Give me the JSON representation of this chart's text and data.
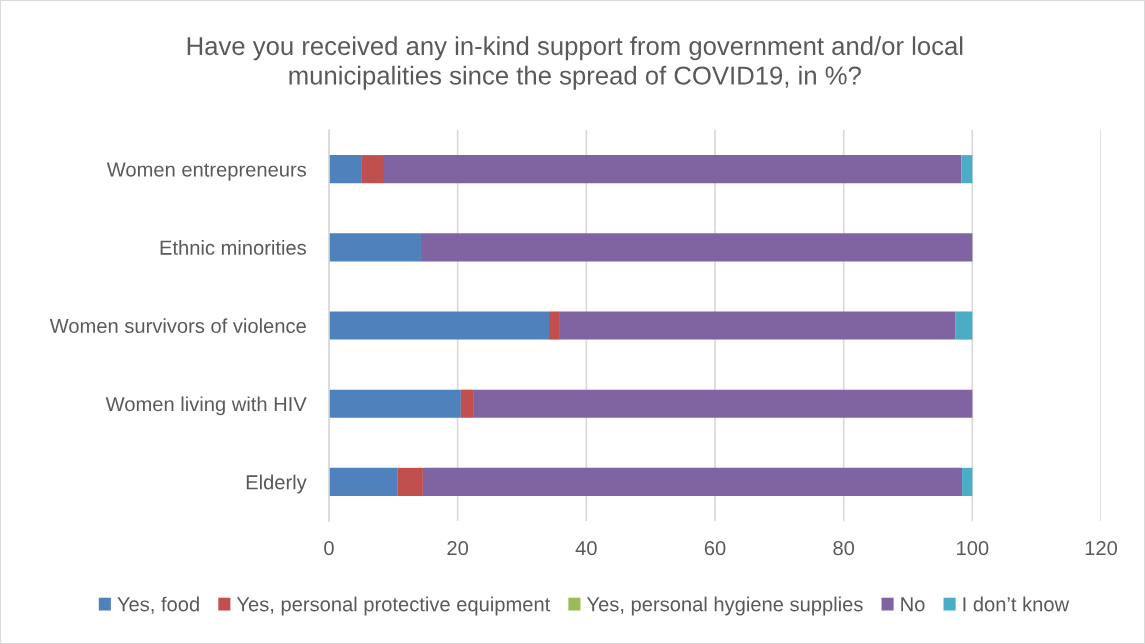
{
  "chart_data": {
    "type": "bar",
    "orientation": "horizontal",
    "stacked": true,
    "title": "Have you received any in-kind support from government and/or local\nmunicipalities since the spread of COVID19, in %?",
    "categories": [
      "Women entrepreneurs",
      "Ethnic minorities",
      "Women survivors of violence",
      "Women living with HIV",
      "Elderly"
    ],
    "series": [
      {
        "name": "Yes, food",
        "color": "#4f81bd",
        "values": [
          5.0,
          14.3,
          34.2,
          20.5,
          10.7
        ]
      },
      {
        "name": "Yes, personal protective equipment",
        "color": "#c0504d",
        "values": [
          3.4,
          0,
          1.7,
          1.9,
          3.9
        ]
      },
      {
        "name": "Yes, personal hygiene supplies",
        "color": "#9bbb59",
        "values": [
          0,
          0,
          0,
          0,
          0
        ]
      },
      {
        "name": "No",
        "color": "#8064a2",
        "values": [
          89.9,
          85.7,
          61.5,
          77.6,
          83.8
        ]
      },
      {
        "name": "I don’t know",
        "color": "#4bacc6",
        "values": [
          1.7,
          0,
          2.6,
          0,
          1.6
        ]
      }
    ],
    "xlim": [
      0,
      120
    ],
    "xticks": [
      0,
      20,
      40,
      60,
      80,
      100,
      120
    ],
    "grid": "x",
    "legend": "bottom"
  }
}
